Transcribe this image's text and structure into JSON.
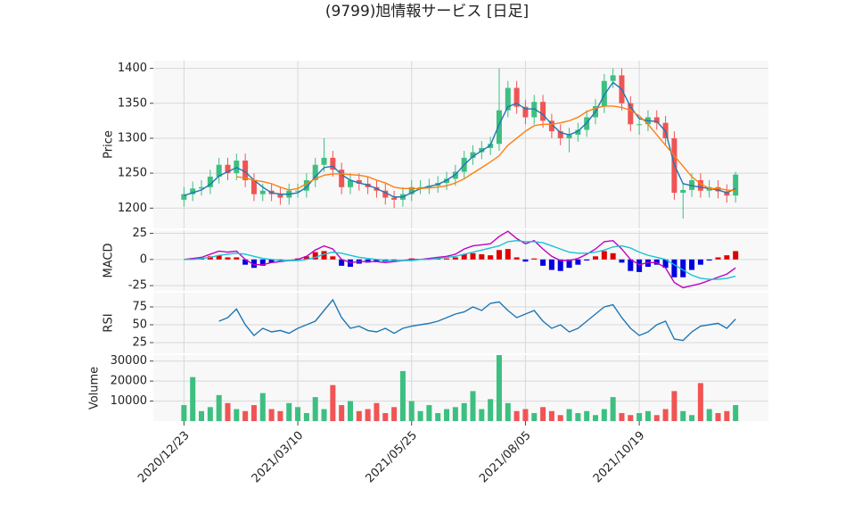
{
  "title": "(9799)旭情報サービス  [日足]",
  "chart_data": [
    {
      "type": "candlestick",
      "ylabel": "Price",
      "x": [
        0,
        4,
        8,
        12,
        16,
        20,
        24,
        28,
        32,
        36,
        40,
        44,
        48,
        52,
        56,
        60,
        64,
        68,
        72,
        76,
        80,
        84,
        88,
        92,
        96,
        100,
        104,
        108,
        112,
        116,
        120,
        124,
        128,
        132,
        136,
        140,
        144,
        148,
        152,
        156,
        160,
        164,
        168,
        172,
        176,
        180,
        184,
        188,
        192,
        196,
        200,
        204,
        208,
        212,
        216,
        220,
        224,
        228,
        232,
        236,
        240,
        244,
        248,
        252
      ],
      "xlim": [
        -14,
        267
      ],
      "xticks": [
        {
          "value": 0,
          "label": "2020/12/23"
        },
        {
          "value": 52,
          "label": "2021/03/10"
        },
        {
          "value": 104,
          "label": "2021/05/25"
        },
        {
          "value": 156,
          "label": "2021/08/05"
        },
        {
          "value": 208,
          "label": "2021/10/19"
        }
      ],
      "ylim": [
        1171,
        1411
      ],
      "yticks": [
        1200,
        1250,
        1300,
        1350,
        1400
      ],
      "up_color": "#3dbf80",
      "down_color": "#f05454",
      "open": [
        1212,
        1220,
        1228,
        1230,
        1245,
        1262,
        1250,
        1268,
        1240,
        1220,
        1225,
        1220,
        1215,
        1225,
        1225,
        1240,
        1262,
        1272,
        1255,
        1230,
        1240,
        1235,
        1230,
        1225,
        1215,
        1212,
        1220,
        1230,
        1230,
        1232,
        1236,
        1242,
        1252,
        1272,
        1280,
        1286,
        1292,
        1340,
        1372,
        1345,
        1330,
        1352,
        1325,
        1310,
        1300,
        1305,
        1312,
        1330,
        1346,
        1382,
        1390,
        1350,
        1320,
        1320,
        1330,
        1322,
        1300,
        1222,
        1226,
        1240,
        1225,
        1230,
        1224,
        1218
      ],
      "high": [
        1230,
        1238,
        1240,
        1255,
        1272,
        1272,
        1278,
        1278,
        1250,
        1235,
        1235,
        1230,
        1235,
        1235,
        1250,
        1272,
        1300,
        1282,
        1265,
        1250,
        1250,
        1245,
        1240,
        1235,
        1225,
        1230,
        1240,
        1240,
        1242,
        1246,
        1252,
        1262,
        1282,
        1290,
        1296,
        1302,
        1400,
        1382,
        1382,
        1355,
        1362,
        1362,
        1335,
        1320,
        1315,
        1322,
        1340,
        1356,
        1392,
        1400,
        1400,
        1360,
        1330,
        1340,
        1340,
        1332,
        1310,
        1236,
        1250,
        1250,
        1240,
        1240,
        1234,
        1252
      ],
      "low": [
        1202,
        1210,
        1218,
        1220,
        1235,
        1240,
        1240,
        1230,
        1210,
        1210,
        1210,
        1205,
        1205,
        1215,
        1215,
        1230,
        1252,
        1245,
        1220,
        1220,
        1225,
        1220,
        1215,
        1205,
        1200,
        1202,
        1210,
        1220,
        1220,
        1222,
        1226,
        1232,
        1242,
        1262,
        1270,
        1276,
        1282,
        1330,
        1335,
        1320,
        1320,
        1315,
        1300,
        1290,
        1280,
        1295,
        1302,
        1320,
        1336,
        1372,
        1340,
        1310,
        1305,
        1310,
        1312,
        1290,
        1212,
        1185,
        1216,
        1215,
        1215,
        1214,
        1208,
        1208
      ],
      "close": [
        1220,
        1228,
        1230,
        1245,
        1262,
        1250,
        1268,
        1240,
        1220,
        1225,
        1220,
        1215,
        1225,
        1225,
        1240,
        1262,
        1272,
        1255,
        1230,
        1240,
        1235,
        1230,
        1225,
        1215,
        1212,
        1220,
        1230,
        1230,
        1232,
        1236,
        1242,
        1252,
        1272,
        1280,
        1286,
        1292,
        1340,
        1372,
        1345,
        1330,
        1352,
        1325,
        1310,
        1300,
        1305,
        1312,
        1330,
        1346,
        1382,
        1390,
        1350,
        1320,
        1320,
        1330,
        1322,
        1300,
        1222,
        1226,
        1240,
        1225,
        1230,
        1224,
        1218,
        1248
      ],
      "series": [
        {
          "color": "#1f77b4",
          "values": [
            1218,
            1222,
            1226,
            1234,
            1246,
            1252,
            1258,
            1252,
            1240,
            1230,
            1222,
            1220,
            1220,
            1222,
            1230,
            1245,
            1258,
            1260,
            1248,
            1240,
            1236,
            1233,
            1228,
            1222,
            1216,
            1216,
            1222,
            1228,
            1231,
            1234,
            1240,
            1248,
            1262,
            1274,
            1282,
            1290,
            1320,
            1345,
            1350,
            1342,
            1342,
            1334,
            1320,
            1308,
            1305,
            1310,
            1322,
            1338,
            1362,
            1380,
            1370,
            1345,
            1328,
            1325,
            1324,
            1310,
            1262,
            1235,
            1232,
            1230,
            1228,
            1226,
            1222,
            1228
          ]
        },
        {
          "color": "#ff7f0e",
          "values": [
            null,
            null,
            null,
            null,
            null,
            null,
            1245,
            1243,
            1240,
            1238,
            1235,
            1230,
            1226,
            1228,
            1235,
            1242,
            1247,
            1249,
            1249,
            1248,
            1247,
            1245,
            1240,
            1236,
            1230,
            1228,
            1228,
            1228,
            1229,
            1230,
            1232,
            1236,
            1242,
            1250,
            1258,
            1266,
            1275,
            1290,
            1300,
            1310,
            1318,
            1320,
            1320,
            1322,
            1325,
            1330,
            1338,
            1343,
            1346,
            1346,
            1344,
            1340,
            1332,
            1320,
            1305,
            1290,
            1275,
            1260,
            1245,
            1235,
            1228,
            1228,
            1226,
            1225
          ]
        }
      ]
    },
    {
      "type": "macd",
      "ylabel": "MACD",
      "ylim": [
        -30,
        28
      ],
      "yticks": [
        -25,
        0,
        25
      ],
      "pos_color": "#e00000",
      "neg_color": "#0000e0",
      "histogram": [
        0,
        1,
        1,
        3,
        4,
        2,
        2,
        -5,
        -8,
        -6,
        -3,
        -1,
        0,
        1,
        3,
        7,
        8,
        3,
        -6,
        -7,
        -4,
        -3,
        -2,
        -2,
        -1,
        0,
        1,
        0,
        1,
        1,
        1,
        2,
        5,
        6,
        5,
        4,
        9,
        10,
        2,
        -2,
        1,
        -6,
        -10,
        -11,
        -8,
        -5,
        -1,
        3,
        8,
        6,
        -3,
        -11,
        -12,
        -7,
        -5,
        -8,
        -17,
        -17,
        -10,
        -5,
        -1,
        2,
        4,
        8
      ],
      "series": [
        {
          "color": "#c000c0",
          "values": [
            0,
            1,
            2,
            5,
            8,
            7,
            8,
            0,
            -5,
            -5,
            -3,
            -2,
            -1,
            0,
            3,
            9,
            13,
            10,
            0,
            -3,
            -2,
            -2,
            -2,
            -3,
            -2,
            -1,
            0,
            0,
            1,
            2,
            3,
            5,
            10,
            13,
            14,
            15,
            22,
            27,
            20,
            15,
            18,
            10,
            3,
            -1,
            -1,
            1,
            5,
            10,
            17,
            18,
            10,
            0,
            -5,
            -3,
            -3,
            -8,
            -22,
            -27,
            -25,
            -23,
            -20,
            -17,
            -14,
            -8
          ]
        },
        {
          "color": "#17c3d4",
          "values": [
            0,
            0,
            1,
            2,
            4,
            5,
            6,
            5,
            3,
            1,
            0,
            -1,
            -1,
            -1,
            0,
            2,
            5,
            7,
            6,
            4,
            2,
            1,
            0,
            -1,
            -1,
            -1,
            -1,
            0,
            0,
            1,
            2,
            3,
            5,
            7,
            9,
            11,
            13,
            17,
            18,
            17,
            17,
            16,
            13,
            10,
            7,
            6,
            6,
            7,
            9,
            12,
            13,
            11,
            7,
            4,
            2,
            0,
            -5,
            -10,
            -15,
            -18,
            -19,
            -19,
            -18,
            -16
          ]
        }
      ]
    },
    {
      "type": "line",
      "ylabel": "RSI",
      "ylim": [
        10,
        95
      ],
      "yticks": [
        25,
        50,
        75
      ],
      "series": [
        {
          "color": "#1f77b4",
          "values": [
            null,
            null,
            null,
            null,
            55,
            60,
            72,
            50,
            35,
            45,
            40,
            42,
            38,
            45,
            50,
            55,
            70,
            85,
            60,
            45,
            48,
            42,
            40,
            45,
            38,
            45,
            48,
            50,
            52,
            55,
            60,
            65,
            68,
            75,
            70,
            80,
            82,
            70,
            60,
            65,
            70,
            55,
            45,
            50,
            40,
            45,
            55,
            65,
            75,
            78,
            60,
            45,
            35,
            40,
            50,
            55,
            30,
            28,
            40,
            48,
            50,
            52,
            45,
            58
          ]
        }
      ]
    },
    {
      "type": "volume",
      "ylabel": "Volume",
      "ylim": [
        0,
        33000
      ],
      "yticks": [
        10000,
        20000,
        30000
      ],
      "values": [
        8000,
        22000,
        5000,
        7000,
        13000,
        9000,
        6000,
        5000,
        8000,
        14000,
        6000,
        5000,
        9000,
        7000,
        4000,
        12000,
        6000,
        18000,
        8000,
        10000,
        5000,
        6000,
        9000,
        4000,
        7000,
        25000,
        10000,
        5000,
        8000,
        4000,
        6000,
        7000,
        9000,
        15000,
        6000,
        11000,
        33000,
        9000,
        5000,
        6000,
        4000,
        7000,
        5000,
        3000,
        6000,
        4000,
        5000,
        3000,
        6000,
        12000,
        4000,
        3000,
        4000,
        5000,
        3000,
        6000,
        15000,
        5000,
        3000,
        19000,
        6000,
        4000,
        5000,
        8000
      ]
    }
  ]
}
